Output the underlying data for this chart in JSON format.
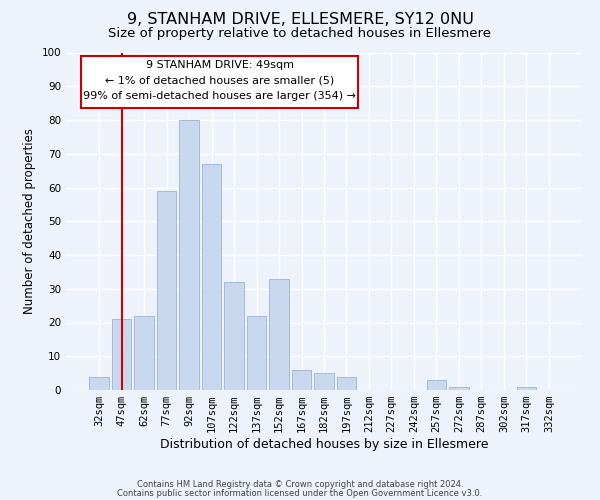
{
  "title": "9, STANHAM DRIVE, ELLESMERE, SY12 0NU",
  "subtitle": "Size of property relative to detached houses in Ellesmere",
  "xlabel": "Distribution of detached houses by size in Ellesmere",
  "ylabel": "Number of detached properties",
  "bar_labels": [
    "32sqm",
    "47sqm",
    "62sqm",
    "77sqm",
    "92sqm",
    "107sqm",
    "122sqm",
    "137sqm",
    "152sqm",
    "167sqm",
    "182sqm",
    "197sqm",
    "212sqm",
    "227sqm",
    "242sqm",
    "257sqm",
    "272sqm",
    "287sqm",
    "302sqm",
    "317sqm",
    "332sqm"
  ],
  "bar_values": [
    4,
    21,
    22,
    59,
    80,
    67,
    32,
    22,
    33,
    6,
    5,
    4,
    0,
    0,
    0,
    3,
    1,
    0,
    0,
    1,
    0
  ],
  "bar_color": "#c8d8ee",
  "bar_edge_color": "#9ab4d4",
  "vline_x": 1,
  "vline_color": "#cc0000",
  "ylim": [
    0,
    100
  ],
  "ann_line1": "9 STANHAM DRIVE: 49sqm",
  "ann_line2": "← 1% of detached houses are smaller (5)",
  "ann_line3": "99% of semi-detached houses are larger (354) →",
  "footer_line1": "Contains HM Land Registry data © Crown copyright and database right 2024.",
  "footer_line2": "Contains public sector information licensed under the Open Government Licence v3.0.",
  "background_color": "#eef2fa",
  "grid_color": "white",
  "title_fontsize": 11.5,
  "subtitle_fontsize": 9.5,
  "xlabel_fontsize": 9,
  "ylabel_fontsize": 8.5,
  "tick_fontsize": 7.5,
  "ann_fontsize": 8,
  "footer_fontsize": 6
}
